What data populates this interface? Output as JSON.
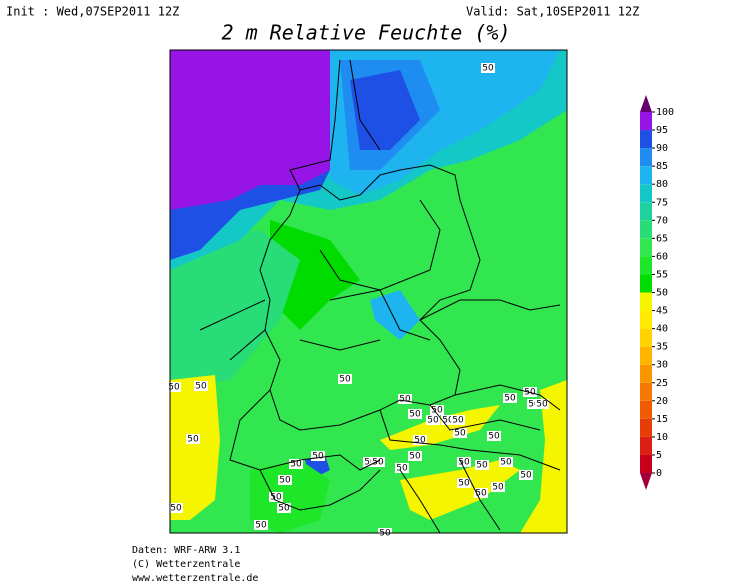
{
  "header": {
    "init": "Init : Wed,07SEP2011 12Z",
    "valid": "Valid: Sat,10SEP2011 12Z",
    "title": "2 m Relative Feuchte (%)"
  },
  "colorbar": {
    "ticks": [
      0,
      5,
      10,
      15,
      20,
      25,
      30,
      35,
      40,
      45,
      50,
      55,
      60,
      65,
      70,
      75,
      80,
      85,
      90,
      95,
      100
    ],
    "colors": [
      "#c8001e",
      "#dc1e14",
      "#e63c0a",
      "#f05a00",
      "#f57800",
      "#fa9600",
      "#ffb400",
      "#ffd200",
      "#ffeb00",
      "#f5f500",
      "#00dc00",
      "#1ee628",
      "#32e650",
      "#28dc78",
      "#1ed2a0",
      "#14c8c8",
      "#1eb4f0",
      "#1e8cf0",
      "#1e50e6",
      "#9614e6"
    ],
    "under_color": "#a0003c",
    "over_color": "#64006e"
  },
  "contour_label": "50",
  "footer": {
    "line1": "Daten: WRF-ARW 3.1",
    "line2": "(C) Wetterzentrale",
    "line3": "www.wetterzentrale.de"
  }
}
